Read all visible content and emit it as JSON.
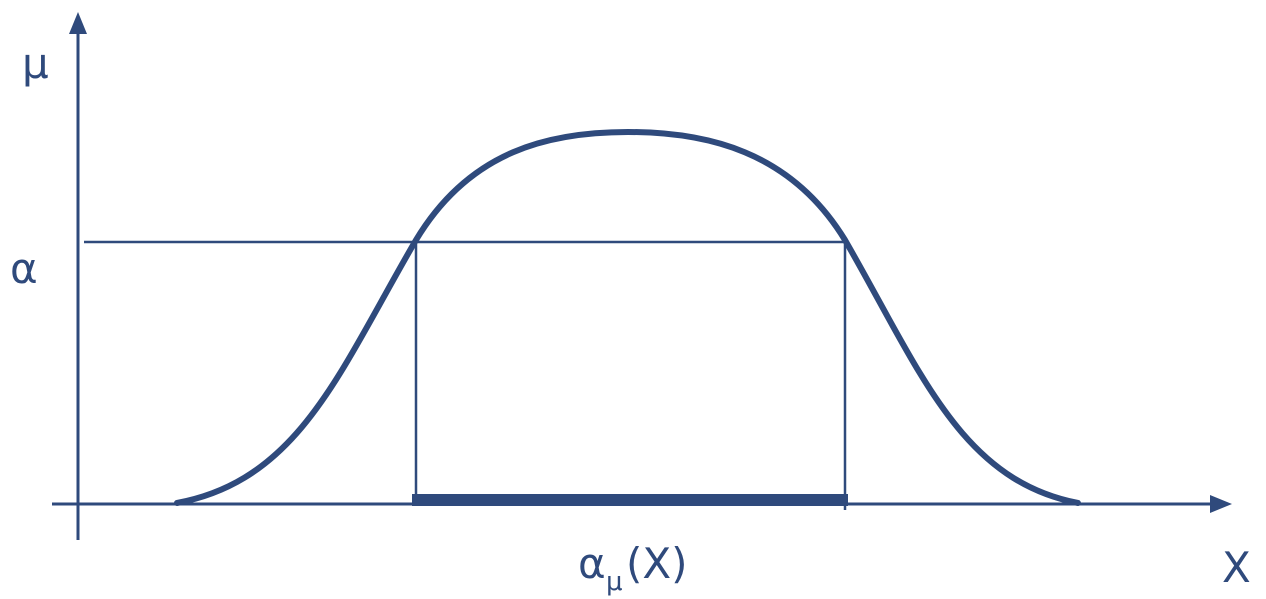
{
  "diagram": {
    "y_axis_label": "μ",
    "x_axis_label": "X",
    "alpha_label": "α",
    "cut_label": {
      "base": "α",
      "subscript": "μ",
      "argument": "(X)"
    }
  },
  "colors": {
    "stroke": "#2f4a7c",
    "background": "#ffffff"
  }
}
